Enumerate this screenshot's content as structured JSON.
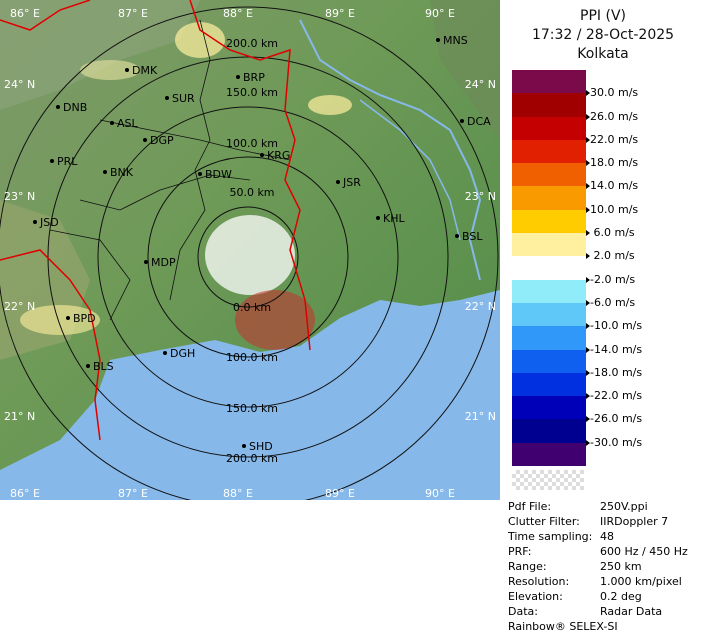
{
  "header": {
    "product": "PPI (V)",
    "datetime": "17:32 / 28-Oct-2025",
    "station": "Kolkata"
  },
  "legend": {
    "colors": [
      "#7a0a4a",
      "#a00000",
      "#c40000",
      "#e02000",
      "#f06000",
      "#f89a00",
      "#ffcc00",
      "#fff0a0",
      "#ffffff",
      "#90ecf8",
      "#60c8f8",
      "#3098f8",
      "#1060f0",
      "#0030e0",
      "#0000b8",
      "#000090",
      "#400070"
    ],
    "labels": [
      "30.0 m/s",
      "26.0 m/s",
      "22.0 m/s",
      "18.0 m/s",
      "14.0 m/s",
      "10.0 m/s",
      " 6.0 m/s",
      " 2.0 m/s",
      "-2.0 m/s",
      "-6.0 m/s",
      "-10.0 m/s",
      "-14.0 m/s",
      "-18.0 m/s",
      "-22.0 m/s",
      "-26.0 m/s",
      "-30.0 m/s"
    ]
  },
  "map": {
    "lon_labels_top": [
      "86° E",
      "87° E",
      "88° E",
      "89° E",
      "90° E"
    ],
    "lon_labels_bottom": [
      "86° E",
      "87° E",
      "88° E",
      "89° E",
      "90° E"
    ],
    "lat_labels_left": [
      "24° N",
      "23° N",
      "22° N",
      "21° N"
    ],
    "lat_labels_right": [
      "24° N",
      "23° N",
      "22° N",
      "21° N"
    ],
    "range_labels_north": [
      "200.0 km",
      "150.0 km",
      "100.0 km",
      "50.0 km"
    ],
    "range_labels_south": [
      "0.0 km",
      "100.0 km",
      "150.0 km",
      "200.0 km"
    ],
    "cities": [
      "MNS",
      "DMK",
      "BRP",
      "DNB",
      "SUR",
      "ASL",
      "DCA",
      "DGP",
      "KRG",
      "PRL",
      "BNK",
      "BDW",
      "JSR",
      "JSD",
      "KHL",
      "BSL",
      "MDP",
      "BPD",
      "DGH",
      "BLS",
      "SHD"
    ]
  },
  "meta": [
    {
      "key": "Pdf File:",
      "value": "250V.ppi"
    },
    {
      "key": "Clutter Filter:",
      "value": "IIRDoppler 7"
    },
    {
      "key": "Time sampling:",
      "value": "48"
    },
    {
      "key": "PRF:",
      "value": "600 Hz / 450 Hz"
    },
    {
      "key": "Range:",
      "value": "250 km"
    },
    {
      "key": "Resolution:",
      "value": "1.000 km/pixel"
    },
    {
      "key": "Elevation:",
      "value": "0.2 deg"
    },
    {
      "key": "Data:",
      "value": "Radar Data"
    }
  ],
  "footer": "Rainbow® SELEX-SI"
}
